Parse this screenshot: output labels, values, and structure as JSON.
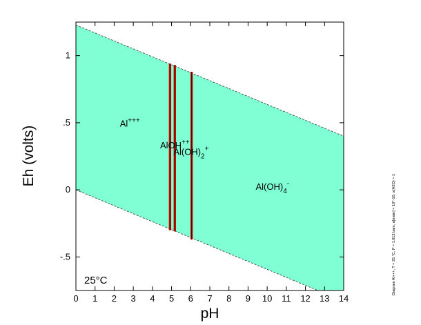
{
  "chart_data": {
    "type": "area",
    "xlabel": "pH",
    "ylabel": "Eh (volts)",
    "xlim": [
      0,
      14
    ],
    "ylim": [
      -0.75,
      1.25
    ],
    "x_ticks": [
      "0",
      "1",
      "2",
      "3",
      "4",
      "5",
      "6",
      "7",
      "8",
      "9",
      "10",
      "11",
      "12",
      "13",
      "14"
    ],
    "y_ticks": [
      {
        "value": 1,
        "label": "1"
      },
      {
        "value": 0.5,
        "label": ".5"
      },
      {
        "value": 0,
        "label": "0"
      },
      {
        "value": -0.5,
        "label": "-.5"
      }
    ],
    "water_stability_field": {
      "fill": "#80FFD4",
      "upper_line": [
        [
          0,
          1.228
        ],
        [
          14,
          0.4
        ]
      ],
      "lower_line": [
        [
          0,
          0.0
        ],
        [
          14,
          -0.83
        ]
      ]
    },
    "phase_boundaries": {
      "color": "#CC1100",
      "pH": [
        4.92,
        5.17,
        6.05
      ],
      "extent": [
        [
          0.94,
          -0.3
        ],
        [
          0.93,
          -0.31
        ],
        [
          0.88,
          -0.37
        ]
      ]
    },
    "species_labels": [
      {
        "base": "Al",
        "sup": "+++",
        "sub": "",
        "x": 2.3,
        "y": 0.47
      },
      {
        "base": "AlOH",
        "sup": "++",
        "sub": "",
        "x": 4.4,
        "y": 0.31
      },
      {
        "base": "Al(OH)",
        "sup": "+",
        "sub": "2",
        "x": 5.1,
        "y": 0.26
      },
      {
        "base": "Al(OH)",
        "sup": "-",
        "sub": "4",
        "x": 9.4,
        "y": 0.0
      }
    ],
    "temperature": "25°C",
    "side_note": "Diagram Al+++, T = 25 °C, P = 1.013 bars, a[main] = 10^-10, a(H2O) = 1"
  },
  "colors": {
    "field": "#80FFD4",
    "boundary": "#CC1100",
    "axis": "#000000"
  }
}
